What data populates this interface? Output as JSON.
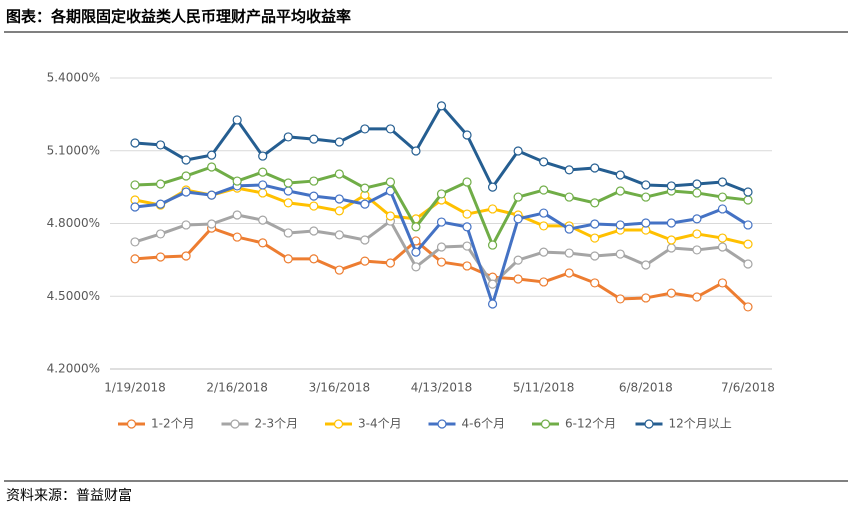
{
  "chart_data": {
    "type": "line",
    "title": "图表：各期限固定收益类人民币理财产品平均收益率",
    "source": "资料来源：普益财富",
    "categories": [
      "1/19/2018",
      null,
      null,
      null,
      "2/16/2018",
      null,
      null,
      null,
      "3/16/2018",
      null,
      null,
      null,
      "4/13/2018",
      null,
      null,
      null,
      "5/11/2018",
      null,
      null,
      null,
      "6/8/2018",
      null,
      null,
      null,
      "7/6/2018"
    ],
    "series": [
      {
        "name": "1-2个月",
        "color": "#ED7D31",
        "values": [
          4.654,
          4.662,
          4.666,
          4.781,
          4.744,
          4.72,
          4.654,
          4.654,
          4.608,
          4.645,
          4.637,
          4.728,
          4.641,
          4.625,
          4.579,
          4.571,
          4.559,
          4.596,
          4.555,
          4.489,
          4.493,
          4.513,
          4.497,
          4.555,
          4.456
        ]
      },
      {
        "name": "2-3个月",
        "color": "#A5A5A5",
        "values": [
          4.724,
          4.757,
          4.794,
          4.798,
          4.835,
          4.814,
          4.761,
          4.769,
          4.753,
          4.732,
          4.81,
          4.621,
          4.703,
          4.707,
          4.55,
          4.649,
          4.682,
          4.678,
          4.666,
          4.674,
          4.629,
          4.699,
          4.691,
          4.703,
          4.633
        ]
      },
      {
        "name": "3-4个月",
        "color": "#FFC000",
        "values": [
          4.897,
          4.876,
          4.938,
          4.917,
          4.946,
          4.926,
          4.885,
          4.872,
          4.852,
          4.917,
          4.831,
          4.819,
          4.897,
          4.839,
          4.86,
          4.835,
          4.79,
          4.79,
          4.74,
          4.773,
          4.773,
          4.732,
          4.757,
          4.74,
          4.715
        ]
      },
      {
        "name": "4-6个月",
        "color": "#4472C4",
        "values": [
          4.868,
          4.88,
          4.93,
          4.917,
          4.955,
          4.959,
          4.934,
          4.913,
          4.901,
          4.88,
          4.934,
          4.682,
          4.806,
          4.786,
          4.468,
          4.819,
          4.843,
          4.777,
          4.798,
          4.794,
          4.802,
          4.802,
          4.819,
          4.86,
          4.794
        ]
      },
      {
        "name": "6-12个月",
        "color": "#70AD47",
        "values": [
          4.959,
          4.963,
          4.996,
          5.033,
          4.975,
          5.012,
          4.967,
          4.975,
          5.004,
          4.946,
          4.971,
          4.786,
          4.922,
          4.971,
          4.711,
          4.909,
          4.938,
          4.909,
          4.885,
          4.934,
          4.909,
          4.934,
          4.926,
          4.909,
          4.897
        ]
      },
      {
        "name": "12个月以上",
        "color": "#255E91",
        "values": [
          5.132,
          5.124,
          5.062,
          5.082,
          5.227,
          5.078,
          5.157,
          5.148,
          5.136,
          5.19,
          5.19,
          5.099,
          5.285,
          5.165,
          4.95,
          5.099,
          5.054,
          5.021,
          5.029,
          5.0,
          4.959,
          4.955,
          4.963,
          4.971,
          4.93
        ]
      }
    ],
    "ylim": [
      4.2,
      5.4
    ],
    "yticks": [
      {
        "value": 4.2,
        "label": "4.2000%"
      },
      {
        "value": 4.5,
        "label": "4.5000%"
      },
      {
        "value": 4.8,
        "label": "4.8000%"
      },
      {
        "value": 5.1,
        "label": "5.1000%"
      },
      {
        "value": 5.4,
        "label": "5.4000%"
      }
    ],
    "grid": true,
    "legend": "bottom"
  }
}
